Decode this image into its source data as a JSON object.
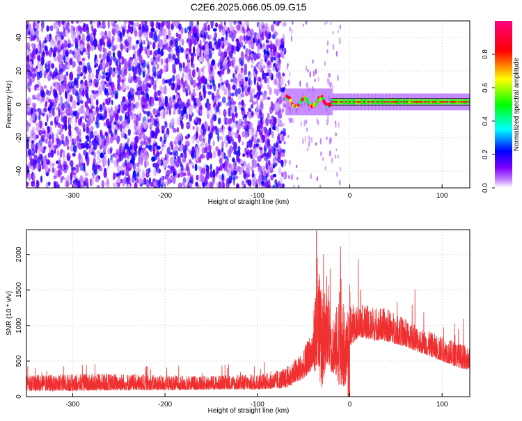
{
  "title": "C2E6.2025.066.05.09.G15",
  "chart_data": [
    {
      "type": "heatmap",
      "xlabel": "Height of straight line (km)",
      "ylabel": "Frequency (Hz)",
      "xlim": [
        -350,
        130
      ],
      "ylim": [
        -50,
        50
      ],
      "xticks": [
        -300,
        -200,
        -100,
        0,
        100
      ],
      "yticks": [
        -40,
        -20,
        0,
        20,
        40
      ],
      "grid": true,
      "colorbar": {
        "label": "Normalized spectral amplitude",
        "range": [
          0,
          1
        ],
        "ticks": [
          0.0,
          0.2,
          0.4,
          0.6,
          0.8
        ],
        "colormap": [
          "#ffffff",
          "#8000ff",
          "#0000ff",
          "#00ffff",
          "#00ff00",
          "#ffff00",
          "#ff0000",
          "#ff0080"
        ]
      },
      "regions": [
        {
          "x": [
            -350,
            -70
          ],
          "freq": [
            -50,
            50
          ],
          "amplitude_range": [
            0.0,
            0.25
          ]
        },
        {
          "x": [
            -70,
            -20
          ],
          "freq": [
            -4,
            6
          ],
          "amplitude_range": [
            0.3,
            1.0
          ]
        },
        {
          "x": [
            -20,
            130
          ],
          "freq": [
            0,
            3
          ],
          "amplitude_range": [
            0.4,
            1.0
          ]
        }
      ]
    },
    {
      "type": "line",
      "xlabel": "Height of straight line (km)",
      "ylabel": "SNR (10 * v/v)",
      "xlim": [
        -350,
        130
      ],
      "ylim": [
        0,
        2350
      ],
      "xticks": [
        -300,
        -200,
        -100,
        0,
        100
      ],
      "yticks": [
        0,
        500,
        1000,
        1500,
        2000
      ],
      "grid": true,
      "color": "#f03030",
      "envelope": {
        "x": [
          -350,
          -300,
          -250,
          -200,
          -150,
          -100,
          -70,
          -50,
          -40,
          -35,
          -30,
          -25,
          -20,
          -15,
          -10,
          -5,
          0,
          10,
          20,
          40,
          60,
          80,
          100,
          120,
          130
        ],
        "low": [
          80,
          80,
          90,
          90,
          100,
          100,
          120,
          250,
          400,
          300,
          100,
          500,
          350,
          300,
          100,
          150,
          700,
          850,
          800,
          780,
          700,
          600,
          500,
          400,
          380
        ],
        "high": [
          300,
          320,
          330,
          300,
          300,
          320,
          400,
          650,
          1000,
          2000,
          1500,
          1800,
          1300,
          1200,
          1800,
          1100,
          1300,
          1300,
          1280,
          1250,
          1100,
          950,
          850,
          750,
          700
        ]
      },
      "peaks": [
        {
          "x": -36,
          "y": 2330
        },
        {
          "x": -27,
          "y": 1450
        },
        {
          "x": -10,
          "y": 2110
        },
        {
          "x": 12,
          "y": 1500
        }
      ]
    }
  ]
}
